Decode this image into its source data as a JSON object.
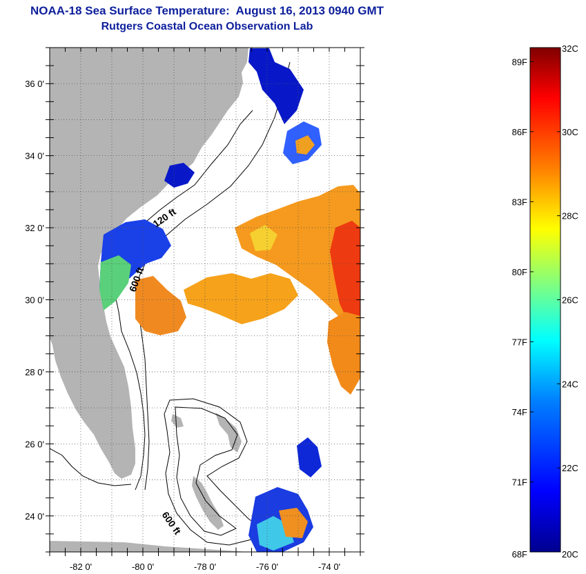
{
  "header": {
    "title": "NOAA-18 Sea Surface Temperature:  August 16, 2013 0940 GMT",
    "subtitle": "Rutgers Coastal Ocean Observation Lab"
  },
  "map": {
    "lat_ticks": [
      {
        "value": 24,
        "label": "24 0'"
      },
      {
        "value": 26,
        "label": "26 0'"
      },
      {
        "value": 28,
        "label": "28 0'"
      },
      {
        "value": 30,
        "label": "30 0'"
      },
      {
        "value": 32,
        "label": "32 0'"
      },
      {
        "value": 34,
        "label": "34 0'"
      },
      {
        "value": 36,
        "label": "36 0'"
      }
    ],
    "lon_ticks": [
      {
        "value": -82,
        "label": "-82 0'"
      },
      {
        "value": -80,
        "label": "-80 0'"
      },
      {
        "value": -78,
        "label": "-78 0'"
      },
      {
        "value": -76,
        "label": "-76 0'"
      },
      {
        "value": -74,
        "label": "-74 0'"
      }
    ],
    "lat_range": [
      23,
      37
    ],
    "lon_range": [
      -83,
      -73
    ],
    "grid": "dotted",
    "depth_labels": [
      "120 ft",
      "600 ft",
      "600 ft"
    ],
    "land_color": "#b4b4b4"
  },
  "colorbar": {
    "celsius_labels": [
      "32C",
      "30C",
      "28C",
      "26C",
      "24C",
      "22C",
      "20C"
    ],
    "fahrenheit_labels": [
      "89F",
      "86F",
      "83F",
      "80F",
      "77F",
      "74F",
      "71F",
      "68F"
    ],
    "celsius_range": [
      20,
      32
    ],
    "colors": [
      "#00008f",
      "#0000ff",
      "#0080ff",
      "#00ffff",
      "#80ff80",
      "#ffff00",
      "#ff8000",
      "#ff0000",
      "#800000"
    ]
  }
}
